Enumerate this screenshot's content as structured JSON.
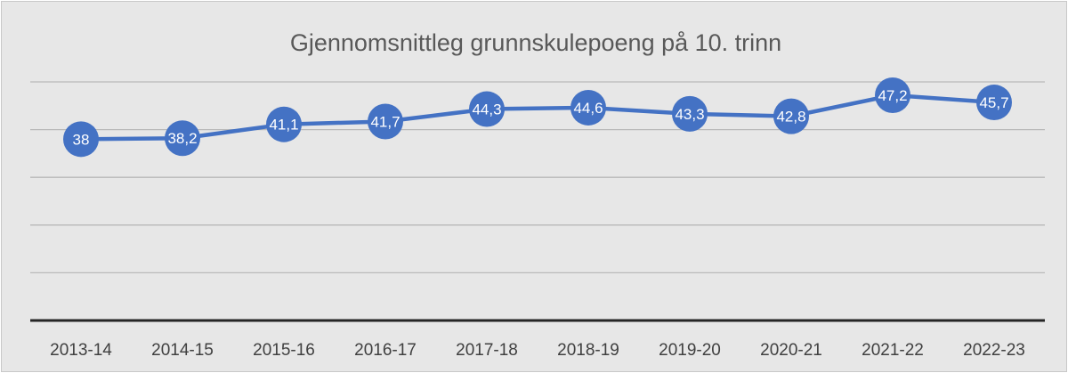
{
  "chart_data": {
    "type": "line",
    "title": "Gjennomsnittleg grunnskulepoeng på 10. trinn",
    "categories": [
      "2013-14",
      "2014-15",
      "2015-16",
      "2016-17",
      "2017-18",
      "2018-19",
      "2019-20",
      "2020-21",
      "2021-22",
      "2022-23"
    ],
    "series": [
      {
        "values": [
          38,
          38.2,
          41.1,
          41.7,
          44.3,
          44.6,
          43.3,
          42.8,
          47.2,
          45.7
        ],
        "labels": [
          "38",
          "38,2",
          "41,1",
          "41,7",
          "44,3",
          "44,6",
          "43,3",
          "42,8",
          "47,2",
          "45,7"
        ],
        "color": "#4472c4"
      }
    ],
    "xlabel": "",
    "ylabel": "",
    "ylim": [
      0,
      50
    ],
    "y_tick_labels_shown": false,
    "gridlines": true,
    "legend": "none",
    "data_labels": "center",
    "background": "#e7e7e7"
  }
}
